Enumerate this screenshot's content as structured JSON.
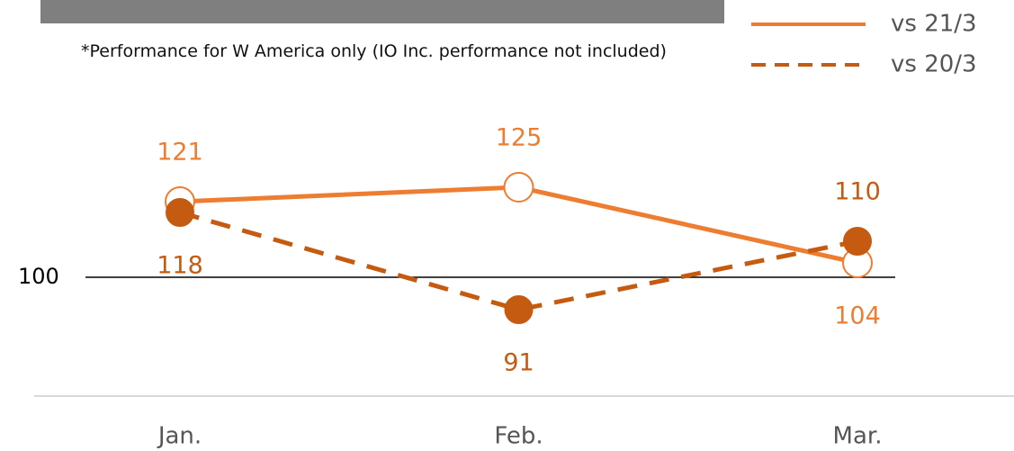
{
  "chart_data": {
    "type": "line",
    "note": "*Performance for W America only (IO Inc. performance not included)",
    "categories": [
      "Jan.",
      "Feb.",
      "Mar."
    ],
    "series": [
      {
        "name": "vs 21/3",
        "color": "#ed7d31",
        "style": "solid",
        "marker": "open",
        "values": [
          121,
          125,
          104
        ]
      },
      {
        "name": "vs 20/3",
        "color": "#c55a11",
        "style": "dashed",
        "marker": "filled",
        "values": [
          118,
          91,
          110
        ]
      }
    ],
    "ylim": [
      67,
      177
    ],
    "yticks": [
      100
    ],
    "legend": "upper right"
  }
}
